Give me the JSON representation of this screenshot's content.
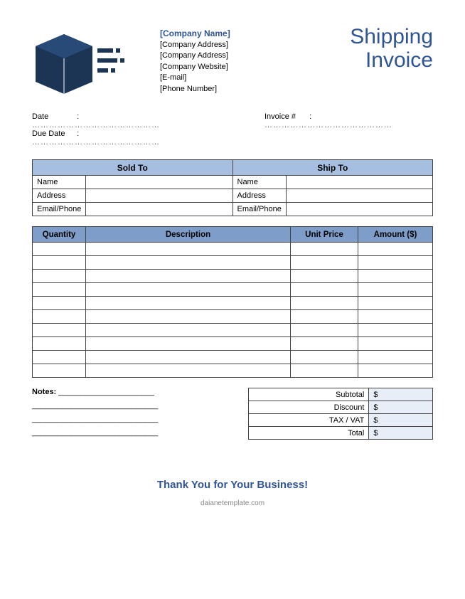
{
  "colors": {
    "brand": "#2f5597",
    "headerLight": "#a6bfe0",
    "headerDark": "#7e9ec9",
    "totalsBg": "#e8eef7",
    "border": "#444444",
    "logoFill": "#1c3555"
  },
  "header": {
    "companyName": "[Company Name]",
    "companyAddress1": "[Company Address]",
    "companyAddress2": "[Company Address]",
    "website": "[Company Website]",
    "email": "[E-mail]",
    "phone": "[Phone Number]",
    "titleLine1": "Shipping",
    "titleLine2": "Invoice"
  },
  "meta": {
    "dateLabel": "Date",
    "dueDateLabel": "Due Date",
    "invoiceLabel": "Invoice #",
    "dots": "………………………………………"
  },
  "soldship": {
    "soldToHeader": "Sold To",
    "shipToHeader": "Ship To",
    "rows": [
      {
        "label": "Name"
      },
      {
        "label": "Address"
      },
      {
        "label": "Email/Phone"
      }
    ]
  },
  "items": {
    "headers": {
      "qty": "Quantity",
      "desc": "Description",
      "unit": "Unit Price",
      "amt": "Amount ($)"
    },
    "rowCount": 10
  },
  "notes": {
    "label": "Notes:",
    "underline": "______________________",
    "line": "_____________________________"
  },
  "totals": {
    "rows": [
      {
        "label": "Subtotal",
        "value": "$"
      },
      {
        "label": "Discount",
        "value": "$"
      },
      {
        "label": "TAX / VAT",
        "value": "$"
      },
      {
        "label": "Total",
        "value": "$"
      }
    ]
  },
  "footer": {
    "thanks": "Thank You for Your Business!",
    "watermark": "daianetemplate.com"
  }
}
